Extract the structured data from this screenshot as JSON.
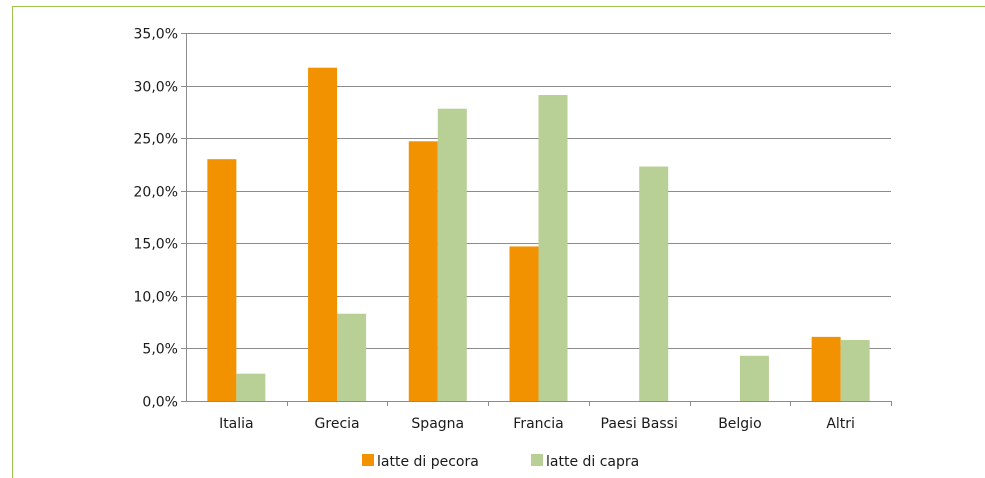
{
  "colors": {
    "frame": "#9cc44e",
    "grid": "#8c8c8c",
    "series_pecora": "#f39200",
    "series_capra": "#b8cf95"
  },
  "chart_data": {
    "type": "bar",
    "title": "",
    "xlabel": "",
    "ylabel": "",
    "categories": [
      "Italia",
      "Grecia",
      "Spagna",
      "Francia",
      "Paesi Bassi",
      "Belgio",
      "Altri"
    ],
    "series": [
      {
        "name": "latte di pecora",
        "values": [
          23.0,
          31.7,
          24.7,
          14.7,
          0,
          0,
          6.1
        ]
      },
      {
        "name": "latte di capra",
        "values": [
          2.6,
          8.3,
          27.8,
          29.1,
          22.3,
          4.3,
          5.8
        ]
      }
    ],
    "ylim": [
      0,
      35
    ],
    "yticks": [
      "0,0%",
      "5,0%",
      "10,0%",
      "15,0%",
      "20,0%",
      "25,0%",
      "30,0%",
      "35,0%"
    ],
    "grid": true,
    "legend_position": "bottom"
  }
}
